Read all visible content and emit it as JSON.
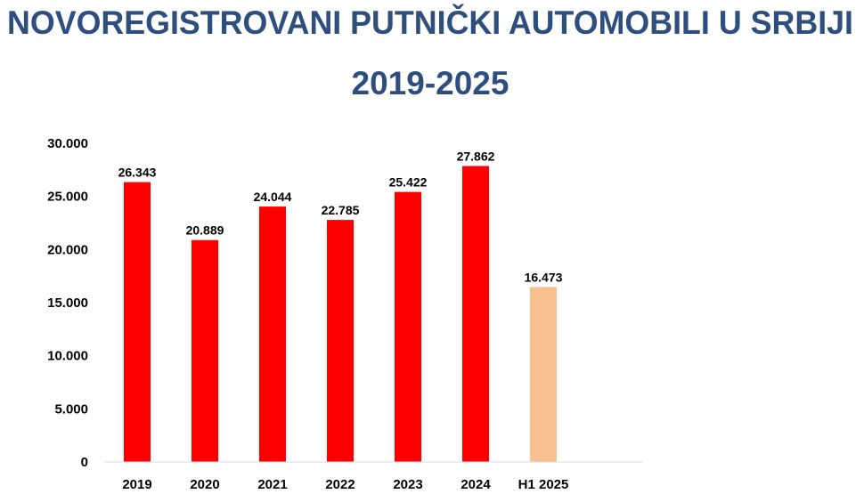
{
  "chart_data": {
    "type": "bar",
    "title": "NOVOREGISTROVANI PUTNIČKI AUTOMOBILI U SRBIJI",
    "subtitle": "2019-2025",
    "categories": [
      "2019",
      "2020",
      "2021",
      "2022",
      "2023",
      "2024",
      "H1 2025"
    ],
    "values": [
      26343,
      20889,
      24044,
      22785,
      25422,
      27862,
      16473
    ],
    "value_labels": [
      "26.343",
      "20.889",
      "24.044",
      "22.785",
      "25.422",
      "27.862",
      "16.473"
    ],
    "bar_colors": [
      "#ff0000",
      "#ff0000",
      "#ff0000",
      "#ff0000",
      "#ff0000",
      "#ff0000",
      "#f8c08e"
    ],
    "ylim": [
      0,
      30000
    ],
    "yticks": [
      0,
      5000,
      10000,
      15000,
      20000,
      25000,
      30000
    ],
    "ytick_labels": [
      "0",
      "5.000",
      "10.000",
      "15.000",
      "20.000",
      "25.000",
      "30.000"
    ],
    "grid": false,
    "legend": "none",
    "xlabel": "",
    "ylabel": ""
  }
}
